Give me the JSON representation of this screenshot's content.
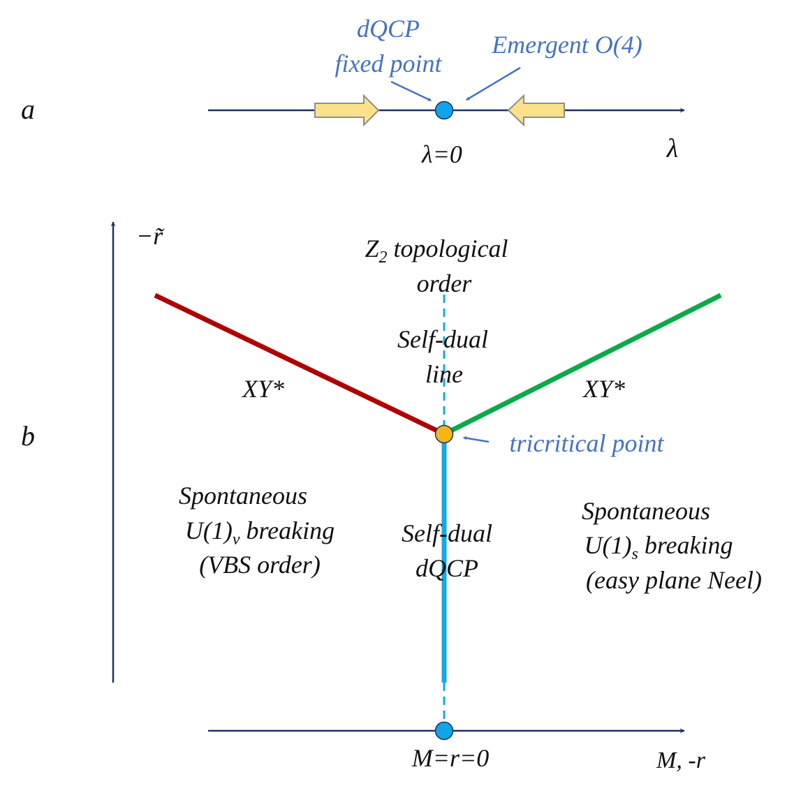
{
  "colors": {
    "axis": "#1f3060",
    "annotation": "#4472c4",
    "fixed_point": "#0fa5e8",
    "tricritical": "#f2b617",
    "red_line": "#b00000",
    "green_line": "#0aaa48",
    "dqcp_line": "#16a8e4",
    "arrow_fill": "#fbe28a",
    "arrow_stroke": "#8e8e8e",
    "text": "#111111"
  },
  "panel_a": {
    "label": "a",
    "axis_label": "λ",
    "point_label": "λ=0",
    "fixed_point_line1": "dQCP",
    "fixed_point_line2": "fixed point",
    "emergent_label": "Emergent O(4)"
  },
  "panel_b": {
    "label": "b",
    "y_axis_label": "−r̃",
    "x_axis_label": "M, -r",
    "origin_label": "M=r=0",
    "z2": {
      "prefix": "Z",
      "sub": "2",
      "rest": " topological",
      "line2": "order"
    },
    "self_dual_line": {
      "line1": "Self-dual",
      "line2": "line"
    },
    "xy_left": "XY*",
    "xy_right": "XY*",
    "tricritical_label": "tricritical point",
    "vbs": {
      "line1": "Spontaneous",
      "line2_prefix": "U(1)",
      "line2_sub": "v",
      "line2_rest": " breaking",
      "line3": "(VBS order)"
    },
    "neel": {
      "line1": "Spontaneous",
      "line2_prefix": "U(1)",
      "line2_sub": "s",
      "line2_rest": " breaking",
      "line3": "(easy plane Neel)"
    },
    "self_dual_dqcp": {
      "line1": "Self-dual",
      "line2": "dQCP"
    }
  }
}
